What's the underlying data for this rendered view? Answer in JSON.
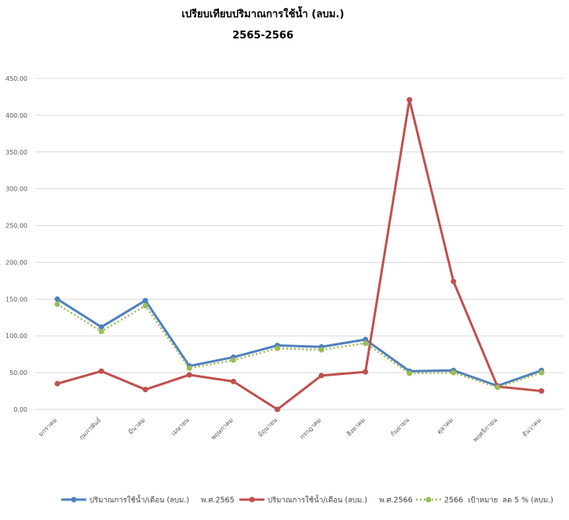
{
  "chart_data": {
    "type": "line",
    "title": "เปรียบเทียบปริมาณการใช้น้ำ (ลบม.)",
    "subtitle": "2565-2566",
    "categories": [
      "มกราคม",
      "กุมภาพันธ์",
      "มีนาคม",
      "เมษายน",
      "พฤษภาคม",
      "มิถุนายน",
      "กรกฎาคม",
      "สิงหาคม",
      "กันยายน",
      "ตุลาคม",
      "พฤศจิกายน",
      "ธันวาคม"
    ],
    "series": [
      {
        "name": "ปริมาณการใช้น้ำ/เดือน (ลบม.)     พ.ศ.2565",
        "color": "#4f81bd",
        "style": "solid",
        "values": [
          150,
          112,
          148,
          59,
          71,
          87,
          85,
          95,
          52,
          53,
          32,
          53
        ]
      },
      {
        "name": "ปริมาณการใช้น้ำ/เดือน (ลบม.)     พ.ศ.2566",
        "color": "#c0504d",
        "style": "solid",
        "values": [
          35,
          52,
          27,
          47,
          38,
          0,
          46,
          51,
          421,
          174,
          31,
          25
        ]
      },
      {
        "name": "2566  เป้าหมาย  ลด 5 % (ลบม.)",
        "color": "#9bbb59",
        "style": "dotted",
        "values": [
          143,
          106,
          141,
          56,
          67,
          83,
          81,
          90,
          49,
          50,
          30,
          50
        ]
      }
    ],
    "ylim": [
      0,
      450
    ],
    "yticks": [
      {
        "value": 0,
        "label": "0.00"
      },
      {
        "value": 50,
        "label": "50.00"
      },
      {
        "value": 100,
        "label": "100.00"
      },
      {
        "value": 150,
        "label": "150.00"
      },
      {
        "value": 200,
        "label": "200.00"
      },
      {
        "value": 250,
        "label": "250.00"
      },
      {
        "value": 300,
        "label": "300.00"
      },
      {
        "value": 350,
        "label": "350.00"
      },
      {
        "value": 400,
        "label": "400.00"
      },
      {
        "value": 450,
        "label": "450.00"
      }
    ],
    "grid": true,
    "legend": "bottom"
  }
}
